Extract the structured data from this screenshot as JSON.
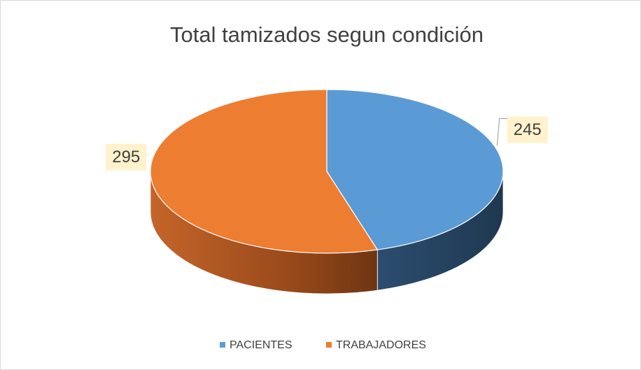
{
  "chart_data": {
    "type": "pie3d",
    "title": "Total tamizados segun condición",
    "categories": [
      "PACIENTES",
      "TRABAJADORES"
    ],
    "values": [
      245,
      295
    ],
    "colors": [
      "#5b9bd5",
      "#ed7d31"
    ],
    "legend": "bottom"
  }
}
